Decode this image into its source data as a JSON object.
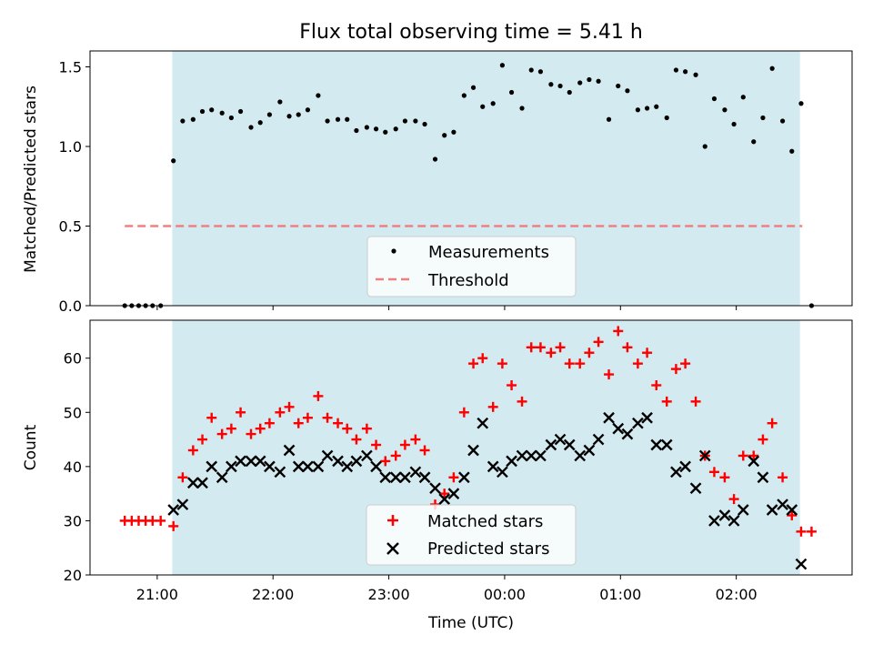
{
  "chart_data": {
    "title": "Flux total observing time = 5.41 h",
    "x_ticks": [
      "21:00",
      "22:00",
      "23:00",
      "00:00",
      "01:00",
      "02:00"
    ],
    "xlabel": "Time (UTC)",
    "observing_window": {
      "start_h": 21.13,
      "end_h": 26.55,
      "color": "#d3eaf0"
    },
    "panels": [
      {
        "type": "scatter",
        "ylabel": "Matched/Predicted stars",
        "ylim": [
          0,
          1.6
        ],
        "y_ticks": [
          "0.0",
          "0.5",
          "1.0",
          "1.5"
        ],
        "y_tick_values": [
          0,
          0.5,
          1.0,
          1.5
        ],
        "threshold": {
          "name": "Threshold",
          "value": 0.5,
          "x_start": 20.72,
          "x_end": 26.57,
          "color": "#f08080"
        },
        "series": [
          {
            "name": "Measurements",
            "marker": "dot",
            "color": "#000000",
            "x": [
              20.72,
              20.78,
              20.84,
              20.9,
              20.96,
              21.03,
              21.14,
              21.22,
              21.31,
              21.39,
              21.47,
              21.56,
              21.64,
              21.72,
              21.81,
              21.89,
              21.97,
              22.06,
              22.14,
              22.22,
              22.3,
              22.39,
              22.47,
              22.56,
              22.64,
              22.72,
              22.81,
              22.89,
              22.97,
              23.06,
              23.14,
              23.23,
              23.31,
              23.4,
              23.48,
              23.56,
              23.65,
              23.73,
              23.81,
              23.9,
              23.98,
              24.06,
              24.15,
              24.23,
              24.31,
              24.4,
              24.48,
              24.56,
              24.65,
              24.73,
              24.81,
              24.9,
              24.98,
              25.06,
              25.15,
              25.23,
              25.31,
              25.4,
              25.48,
              25.56,
              25.65,
              25.73,
              25.81,
              25.9,
              25.98,
              26.06,
              26.15,
              26.23,
              26.31,
              26.4,
              26.48,
              26.56,
              26.65
            ],
            "y": [
              0,
              0,
              0,
              0,
              0,
              0,
              0.91,
              1.16,
              1.17,
              1.22,
              1.23,
              1.21,
              1.18,
              1.22,
              1.12,
              1.15,
              1.2,
              1.28,
              1.19,
              1.2,
              1.23,
              1.32,
              1.16,
              1.17,
              1.17,
              1.1,
              1.12,
              1.11,
              1.09,
              1.11,
              1.16,
              1.16,
              1.14,
              0.92,
              1.07,
              1.09,
              1.32,
              1.37,
              1.25,
              1.27,
              1.51,
              1.34,
              1.24,
              1.48,
              1.47,
              1.39,
              1.38,
              1.34,
              1.4,
              1.42,
              1.41,
              1.17,
              1.38,
              1.35,
              1.23,
              1.24,
              1.25,
              1.18,
              1.48,
              1.47,
              1.45,
              1.0,
              1.3,
              1.23,
              1.14,
              1.31,
              1.03,
              1.18,
              1.49,
              1.16,
              0.97,
              1.27,
              0
            ]
          }
        ],
        "legend": [
          "Measurements",
          "Threshold"
        ]
      },
      {
        "type": "scatter",
        "ylabel": "Count",
        "ylim": [
          20,
          67
        ],
        "y_ticks": [
          "20",
          "30",
          "40",
          "50",
          "60"
        ],
        "y_tick_values": [
          20,
          30,
          40,
          50,
          60
        ],
        "series": [
          {
            "name": "Matched stars",
            "marker": "plus",
            "color": "#ff0000",
            "x": [
              20.72,
              20.78,
              20.84,
              20.9,
              20.96,
              21.03,
              21.14,
              21.22,
              21.31,
              21.39,
              21.47,
              21.56,
              21.64,
              21.72,
              21.81,
              21.89,
              21.97,
              22.06,
              22.14,
              22.22,
              22.3,
              22.39,
              22.47,
              22.56,
              22.64,
              22.72,
              22.81,
              22.89,
              22.97,
              23.06,
              23.14,
              23.23,
              23.31,
              23.4,
              23.48,
              23.56,
              23.65,
              23.73,
              23.81,
              23.9,
              23.98,
              24.06,
              24.15,
              24.23,
              24.31,
              24.4,
              24.48,
              24.56,
              24.65,
              24.73,
              24.81,
              24.9,
              24.98,
              25.06,
              25.15,
              25.23,
              25.31,
              25.4,
              25.48,
              25.56,
              25.65,
              25.73,
              25.81,
              25.9,
              25.98,
              26.06,
              26.15,
              26.23,
              26.31,
              26.4,
              26.48,
              26.56,
              26.65
            ],
            "y": [
              30,
              30,
              30,
              30,
              30,
              30,
              29,
              38,
              43,
              45,
              49,
              46,
              47,
              50,
              46,
              47,
              48,
              50,
              51,
              48,
              49,
              53,
              49,
              48,
              47,
              45,
              47,
              44,
              41,
              42,
              44,
              45,
              43,
              33,
              35,
              38,
              50,
              59,
              60,
              51,
              59,
              55,
              52,
              62,
              62,
              61,
              62,
              59,
              59,
              61,
              63,
              57,
              65,
              62,
              59,
              61,
              55,
              52,
              58,
              59,
              52,
              42,
              39,
              38,
              34,
              42,
              42,
              45,
              48,
              38,
              31,
              28,
              28
            ]
          },
          {
            "name": "Predicted stars",
            "marker": "x",
            "color": "#000000",
            "x": [
              21.14,
              21.22,
              21.31,
              21.39,
              21.47,
              21.56,
              21.64,
              21.72,
              21.81,
              21.89,
              21.97,
              22.06,
              22.14,
              22.22,
              22.3,
              22.39,
              22.47,
              22.56,
              22.64,
              22.72,
              22.81,
              22.89,
              22.97,
              23.06,
              23.14,
              23.23,
              23.31,
              23.4,
              23.48,
              23.56,
              23.65,
              23.73,
              23.81,
              23.9,
              23.98,
              24.06,
              24.15,
              24.23,
              24.31,
              24.4,
              24.48,
              24.56,
              24.65,
              24.73,
              24.81,
              24.9,
              24.98,
              25.06,
              25.15,
              25.23,
              25.31,
              25.4,
              25.48,
              25.56,
              25.65,
              25.73,
              25.81,
              25.9,
              25.98,
              26.06,
              26.15,
              26.23,
              26.31,
              26.4,
              26.48,
              26.56
            ],
            "y": [
              32,
              33,
              37,
              37,
              40,
              38,
              40,
              41,
              41,
              41,
              40,
              39,
              43,
              40,
              40,
              40,
              42,
              41,
              40,
              41,
              42,
              40,
              38,
              38,
              38,
              39,
              38,
              36,
              34,
              35,
              38,
              43,
              48,
              40,
              39,
              41,
              42,
              42,
              42,
              44,
              45,
              44,
              42,
              43,
              45,
              49,
              47,
              46,
              48,
              49,
              44,
              44,
              39,
              40,
              36,
              42,
              30,
              31,
              30,
              32,
              41,
              38,
              32,
              33,
              32,
              22
            ]
          }
        ],
        "legend": [
          "Matched stars",
          "Predicted stars"
        ]
      }
    ]
  }
}
